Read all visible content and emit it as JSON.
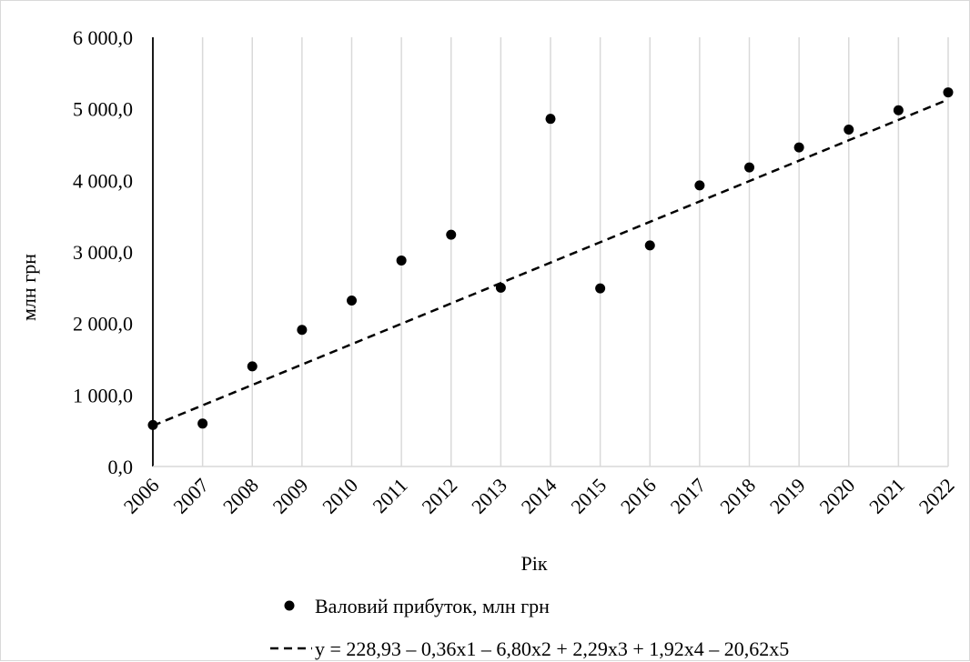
{
  "chart_data": {
    "type": "scatter",
    "title": "",
    "xlabel": "Рік",
    "ylabel": "млн грн",
    "categories": [
      "2006",
      "2007",
      "2008",
      "2009",
      "2010",
      "2011",
      "2012",
      "2013",
      "2014",
      "2015",
      "2016",
      "2017",
      "2018",
      "2019",
      "2020",
      "2021",
      "2022"
    ],
    "series": [
      {
        "name": "Валовий прибуток, млн грн",
        "kind": "points",
        "color": "#000000",
        "values": [
          580,
          600,
          1400,
          1910,
          2320,
          2880,
          3240,
          2500,
          4860,
          2490,
          3090,
          3930,
          4180,
          4460,
          4710,
          4980,
          5230
        ]
      },
      {
        "name": "y = 228,93 – 0,36x1 – 6,80x2 + 2,29x3 + 1,92x4 – 20,62x5",
        "kind": "dashed-line",
        "color": "#000000",
        "values": [
          570,
          855,
          1140,
          1425,
          1710,
          1995,
          2280,
          2565,
          2850,
          3135,
          3420,
          3705,
          3990,
          4275,
          4560,
          4845,
          5130
        ]
      }
    ],
    "y_ticks": [
      "0,0",
      "1 000,0",
      "2 000,0",
      "3 000,0",
      "4 000,0",
      "5 000,0",
      "6 000,0"
    ],
    "ylim": [
      0,
      6000
    ],
    "grid": "vertical",
    "legend_position": "bottom"
  }
}
